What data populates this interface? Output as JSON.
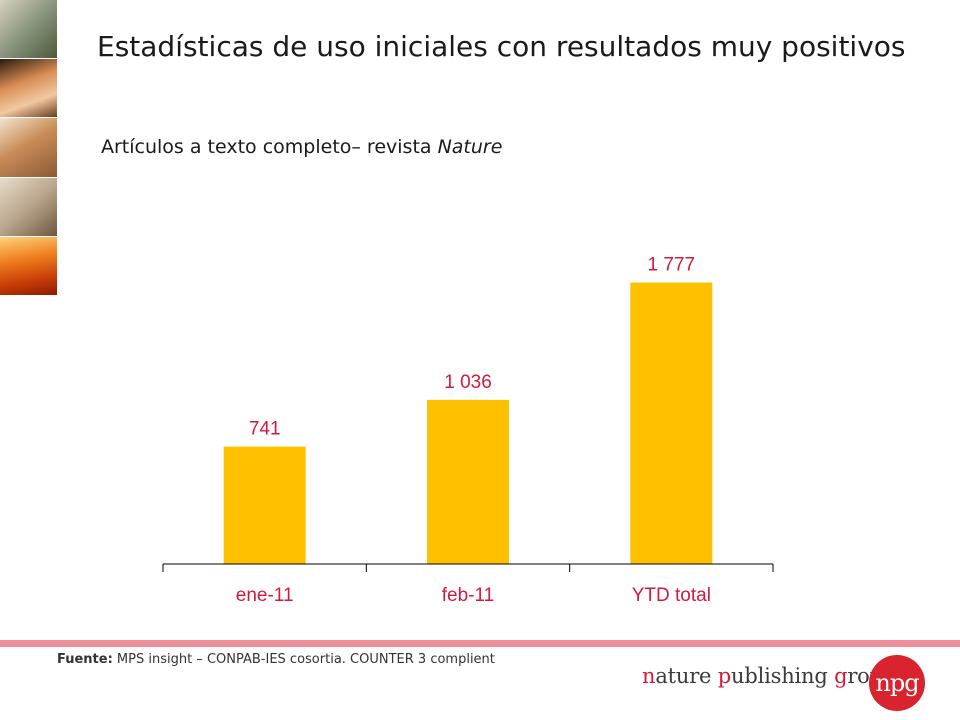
{
  "slide": {
    "title": "Estadísticas de uso iniciales con resultados muy positivos",
    "subtitle_prefix": "Artículos a texto completo– revista ",
    "subtitle_journal": "Nature"
  },
  "chart_data": {
    "type": "bar",
    "categories": [
      "ene-11",
      "feb-11",
      "YTD total"
    ],
    "values": [
      741,
      1036,
      1777
    ],
    "value_labels": [
      "741",
      "1 036",
      "1 777"
    ],
    "ylim": [
      0,
      1900
    ],
    "grid": false,
    "colors": {
      "bar": "#ffc000",
      "labels": "#d41a3c"
    }
  },
  "footer": {
    "source_label": "Fuente:",
    "source_text": " MPS insight – CONPAB-IES cosortia. COUNTER 3 complient",
    "rule_color": "#ef8f9b"
  },
  "logo": {
    "n": "n",
    "ature": "ature ",
    "p": "p",
    "ublishing": "ublishing ",
    "g": "g",
    "roup": "roup",
    "mark": "npg"
  }
}
